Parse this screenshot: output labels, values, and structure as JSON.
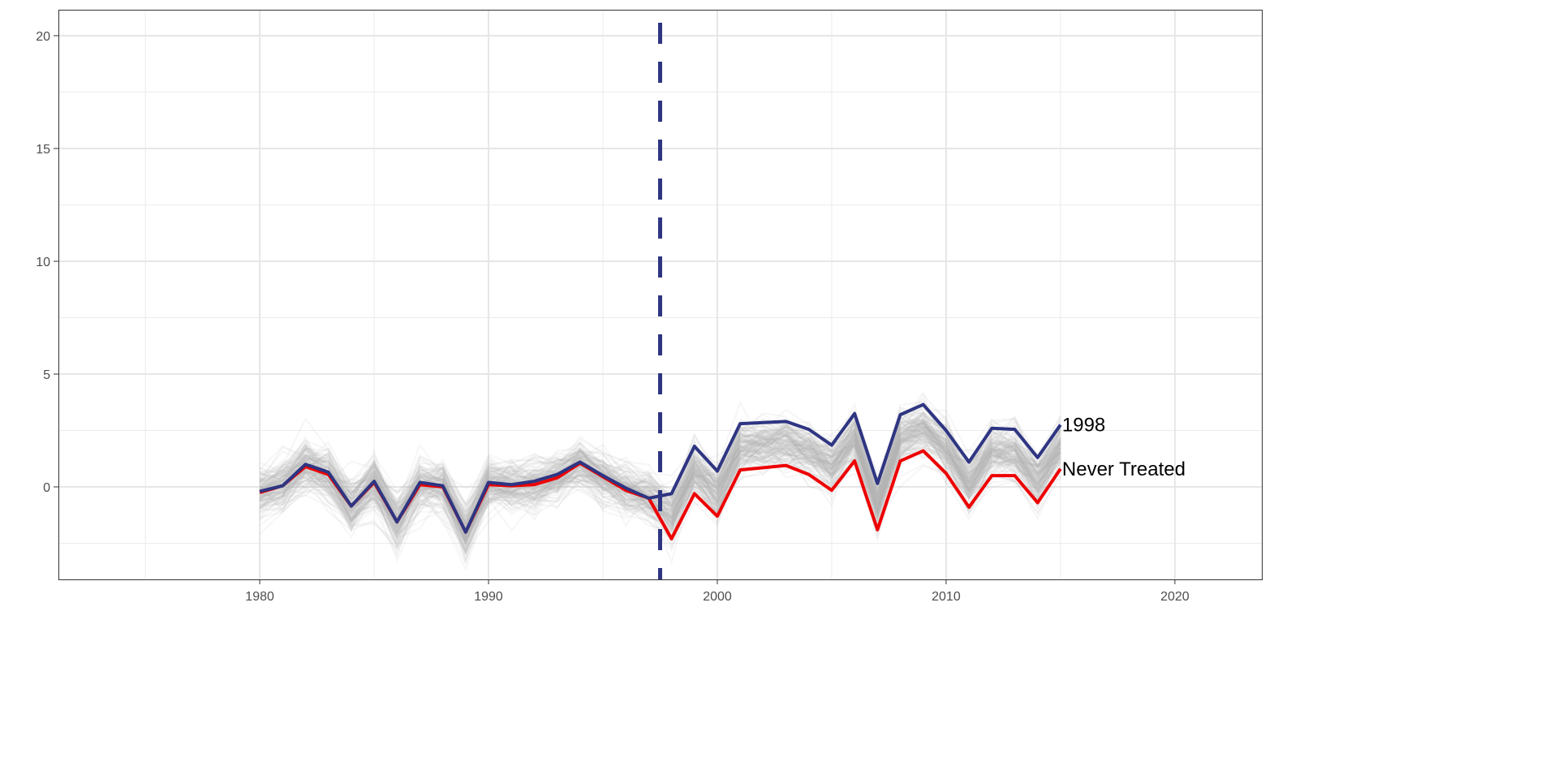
{
  "chart_data": {
    "type": "line",
    "title": "",
    "xlabel": "",
    "ylabel": "",
    "xlim": [
      1971.2,
      2023.8
    ],
    "ylim": [
      -4.1,
      21.15
    ],
    "x_ticks": [
      1980,
      1990,
      2000,
      2010,
      2020
    ],
    "y_ticks": [
      0,
      5,
      10,
      15,
      20
    ],
    "grid": true,
    "treatment_line_x": 1997.5,
    "x": [
      1980,
      1981,
      1982,
      1983,
      1984,
      1985,
      1986,
      1987,
      1988,
      1989,
      1990,
      1991,
      1992,
      1993,
      1994,
      1995,
      1996,
      1997,
      1998,
      1999,
      2000,
      2001,
      2002,
      2003,
      2004,
      2005,
      2006,
      2007,
      2008,
      2009,
      2010,
      2011,
      2012,
      2013,
      2014,
      2015
    ],
    "series": [
      {
        "name": "1998",
        "color": "#2e3582",
        "values": [
          -0.2,
          0.05,
          1.0,
          0.65,
          -0.85,
          0.25,
          -1.55,
          0.2,
          0.05,
          -2.0,
          0.2,
          0.1,
          0.25,
          0.55,
          1.1,
          0.5,
          -0.05,
          -0.5,
          -0.3,
          1.8,
          0.7,
          2.8,
          2.85,
          2.9,
          2.55,
          1.85,
          3.25,
          0.15,
          3.2,
          3.65,
          2.5,
          1.1,
          2.6,
          2.55,
          1.3,
          2.75
        ]
      },
      {
        "name": "Never Treated",
        "color": "#ee0000",
        "values": [
          -0.25,
          0.05,
          0.9,
          0.55,
          -0.85,
          0.2,
          -1.55,
          0.1,
          0.0,
          -2.0,
          0.1,
          0.05,
          0.1,
          0.4,
          1.05,
          0.45,
          -0.15,
          -0.5,
          -2.3,
          -0.3,
          -1.3,
          0.75,
          0.85,
          0.95,
          0.55,
          -0.15,
          1.15,
          -1.9,
          1.15,
          1.6,
          0.6,
          -0.9,
          0.5,
          0.5,
          -0.7,
          0.8
        ]
      }
    ],
    "placebo_lines": {
      "color": "#b3b3b3",
      "count": 150,
      "post_shift": 1.05,
      "spread": 0.7
    }
  }
}
